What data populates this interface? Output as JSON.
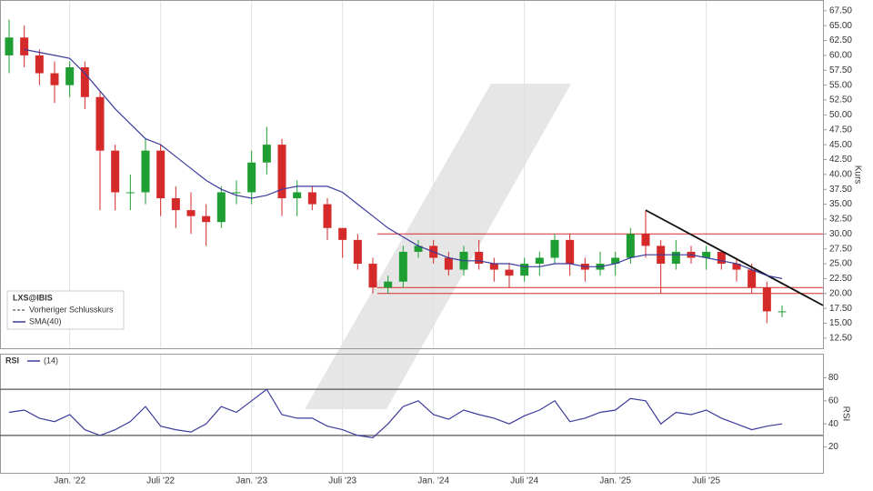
{
  "chart_data": [
    {
      "type": "candlestick",
      "ticker": "LXS@IBIS",
      "ylabel": "Kurs",
      "prev_close_legend": "Vorheriger Schlusskurs",
      "up_color": "#1e9e33",
      "down_color": "#d42a2a",
      "open": [
        60,
        63,
        60,
        57,
        55,
        58,
        53,
        44,
        37,
        37,
        44,
        36,
        34,
        33,
        32,
        37,
        37,
        42,
        45,
        36,
        37,
        35,
        31,
        29,
        25,
        21,
        22,
        27,
        28,
        26,
        24,
        27,
        25,
        24,
        23,
        25,
        26,
        29,
        25,
        24,
        25,
        26,
        30,
        28,
        25,
        27,
        26,
        27,
        25,
        24,
        21,
        17
      ],
      "high": [
        66,
        65,
        61,
        59,
        59,
        59,
        54,
        45,
        40,
        46,
        45,
        38,
        37,
        35,
        38,
        39,
        44,
        48,
        46,
        39,
        38,
        36,
        31,
        30,
        26,
        23,
        28,
        29,
        29,
        27,
        28,
        29,
        26,
        25,
        26,
        27,
        30,
        30,
        26,
        27,
        27,
        31,
        34,
        29,
        29,
        28,
        28,
        27,
        26,
        25,
        22,
        18
      ],
      "low": [
        57,
        58,
        55,
        52,
        53,
        51,
        34,
        34,
        34,
        35,
        33,
        31,
        30,
        28,
        31,
        35,
        35,
        40,
        33,
        33,
        34,
        29,
        26,
        24,
        20,
        20,
        21,
        26,
        25,
        23,
        23,
        24,
        22,
        21,
        22,
        23,
        25,
        23,
        22,
        23,
        23,
        25,
        26,
        20,
        24,
        25,
        24,
        24,
        22,
        20,
        15,
        16
      ],
      "close": [
        63,
        60,
        57,
        55,
        58,
        53,
        44,
        37,
        37,
        44,
        36,
        34,
        33,
        32,
        37,
        37,
        42,
        45,
        36,
        37,
        35,
        31,
        29,
        25,
        21,
        22,
        27,
        28,
        26,
        24,
        27,
        25,
        24,
        23,
        25,
        26,
        29,
        25,
        24,
        25,
        26,
        30,
        28,
        25,
        27,
        26,
        27,
        25,
        24,
        21,
        17,
        17
      ],
      "series": [
        {
          "name": "SMA(40)",
          "color": "#3b3b9c",
          "values": [
            null,
            61,
            60.5,
            60,
            59.5,
            57,
            54,
            51,
            48.5,
            46,
            45,
            43,
            41,
            39,
            37.5,
            36.5,
            36,
            36.5,
            37.5,
            38,
            38,
            38,
            37,
            35,
            33,
            31,
            29.5,
            28,
            27,
            26,
            25.5,
            25.5,
            25,
            25,
            24.5,
            24.5,
            25,
            25,
            24.5,
            24.5,
            25,
            26,
            26.5,
            26.5,
            26.5,
            26.5,
            26,
            25.5,
            25,
            24,
            23,
            22.5
          ]
        }
      ],
      "levels": [
        30,
        21,
        20
      ],
      "level_color": "#d42a2a",
      "trendline": {
        "x": [
          42,
          53.7
        ],
        "y": [
          34,
          18
        ]
      },
      "xlim": [
        -0.6,
        53.7
      ],
      "ylim": [
        10.8,
        69
      ],
      "yticks": [
        {
          "value": 67.5,
          "label": "67.50"
        },
        {
          "value": 65,
          "label": "65.00"
        },
        {
          "value": 62.5,
          "label": "62.50"
        },
        {
          "value": 60,
          "label": "60.00"
        },
        {
          "value": 57.5,
          "label": "57.50"
        },
        {
          "value": 55,
          "label": "55.00"
        },
        {
          "value": 52.5,
          "label": "52.50"
        },
        {
          "value": 50,
          "label": "50.00"
        },
        {
          "value": 47.5,
          "label": "47.50"
        },
        {
          "value": 45,
          "label": "45.00"
        },
        {
          "value": 42.5,
          "label": "42.50"
        },
        {
          "value": 40,
          "label": "40.00"
        },
        {
          "value": 37.5,
          "label": "37.50"
        },
        {
          "value": 35,
          "label": "35.00"
        },
        {
          "value": 32.5,
          "label": "32.50"
        },
        {
          "value": 30,
          "label": "30.00"
        },
        {
          "value": 27.5,
          "label": "27.50"
        },
        {
          "value": 25,
          "label": "25.00"
        },
        {
          "value": 22.5,
          "label": "22.50"
        },
        {
          "value": 20,
          "label": "20.00"
        },
        {
          "value": 17.5,
          "label": "17.50"
        },
        {
          "value": 15,
          "label": "15.00"
        },
        {
          "value": 12.5,
          "label": "12.50"
        }
      ]
    },
    {
      "type": "line",
      "title": "RSI",
      "ylabel": "RSI",
      "series": [
        {
          "name": "(14)",
          "color": "#3b3b9c",
          "values": [
            50,
            52,
            45,
            42,
            48,
            35,
            30,
            35,
            42,
            55,
            38,
            35,
            33,
            40,
            55,
            50,
            60,
            70,
            48,
            45,
            45,
            38,
            35,
            30,
            28,
            40,
            55,
            60,
            48,
            44,
            52,
            48,
            45,
            40,
            47,
            52,
            60,
            42,
            45,
            50,
            52,
            62,
            60,
            40,
            50,
            48,
            52,
            45,
            40,
            35,
            38,
            40
          ]
        }
      ],
      "levels": [
        70,
        30
      ],
      "xlim": [
        -0.6,
        53.7
      ],
      "ylim": [
        0,
        100
      ],
      "yticks": [
        80,
        60,
        40,
        20
      ],
      "xticks": [
        {
          "value": 4,
          "label": "Jan. '22"
        },
        {
          "value": 10,
          "label": "Juli '22"
        },
        {
          "value": 16,
          "label": "Jan. '23"
        },
        {
          "value": 22,
          "label": "Juli '23"
        },
        {
          "value": 28,
          "label": "Jan. '24"
        },
        {
          "value": 34,
          "label": "Juli '24"
        },
        {
          "value": 40,
          "label": "Jan. '25"
        },
        {
          "value": 46,
          "label": "Juli '25"
        }
      ]
    }
  ]
}
